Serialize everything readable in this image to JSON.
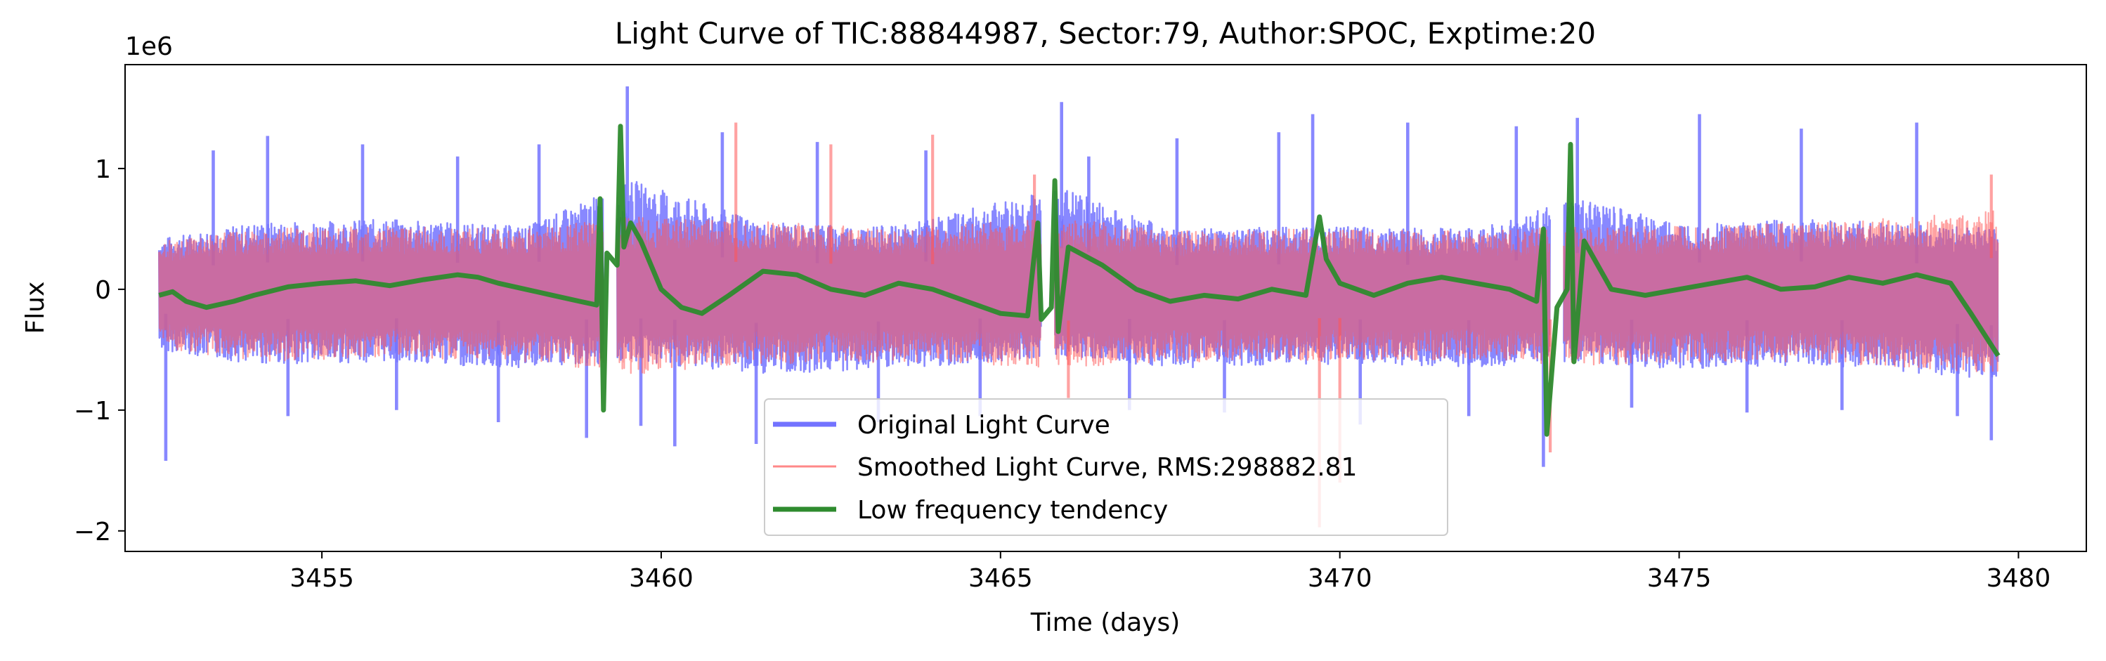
{
  "chart_data": {
    "type": "line",
    "title": "Light Curve of TIC:88844987, Sector:79, Author:SPOC, Exptime:20",
    "xlabel": "Time (days)",
    "ylabel": "Flux",
    "y_offset_label": "1e6",
    "y_scale": 1000000,
    "xlim": [
      3452.1,
      3481.0
    ],
    "ylim": [
      -2.17,
      1.86
    ],
    "x_ticks": [
      3455,
      3460,
      3465,
      3470,
      3475,
      3480
    ],
    "x_tick_labels": [
      "3455",
      "3460",
      "3465",
      "3470",
      "3475",
      "3480"
    ],
    "y_ticks": [
      -2,
      -1,
      0,
      1
    ],
    "y_tick_labels": [
      "−2",
      "−1",
      "0",
      "1"
    ],
    "grid": false,
    "legend_position": "bottom-center",
    "data_segments": [
      [
        3452.6,
        3459.15
      ],
      [
        3459.35,
        3465.6
      ],
      [
        3465.8,
        3473.1
      ],
      [
        3473.3,
        3479.7
      ]
    ],
    "series": [
      {
        "name": "Original Light Curve",
        "color": "#7373ff",
        "band_upper": [
          [
            3452.6,
            0.42
          ],
          [
            3454.0,
            0.55
          ],
          [
            3456.0,
            0.58
          ],
          [
            3458.0,
            0.52
          ],
          [
            3459.6,
            0.9
          ],
          [
            3461.5,
            0.55
          ],
          [
            3463.5,
            0.52
          ],
          [
            3465.9,
            0.85
          ],
          [
            3467.5,
            0.5
          ],
          [
            3469.5,
            0.52
          ],
          [
            3472.0,
            0.5
          ],
          [
            3473.5,
            0.75
          ],
          [
            3475.0,
            0.55
          ],
          [
            3477.0,
            0.58
          ],
          [
            3479.7,
            0.5
          ]
        ],
        "band_lower": [
          [
            3452.6,
            -0.5
          ],
          [
            3454.0,
            -0.62
          ],
          [
            3456.0,
            -0.6
          ],
          [
            3458.0,
            -0.66
          ],
          [
            3459.6,
            -0.6
          ],
          [
            3461.5,
            -0.7
          ],
          [
            3463.5,
            -0.66
          ],
          [
            3465.9,
            -0.55
          ],
          [
            3467.5,
            -0.65
          ],
          [
            3469.5,
            -0.62
          ],
          [
            3472.0,
            -0.64
          ],
          [
            3473.5,
            -0.6
          ],
          [
            3475.0,
            -0.66
          ],
          [
            3477.0,
            -0.62
          ],
          [
            3479.7,
            -0.75
          ]
        ],
        "spikes": [
          [
            3452.7,
            -1.42
          ],
          [
            3453.4,
            1.15
          ],
          [
            3454.2,
            1.27
          ],
          [
            3454.5,
            -1.05
          ],
          [
            3455.6,
            1.2
          ],
          [
            3456.1,
            -1.0
          ],
          [
            3457.0,
            1.1
          ],
          [
            3457.6,
            -1.1
          ],
          [
            3458.2,
            1.2
          ],
          [
            3458.9,
            -1.23
          ],
          [
            3459.5,
            1.68
          ],
          [
            3459.7,
            -1.13
          ],
          [
            3460.2,
            -1.3
          ],
          [
            3460.9,
            1.3
          ],
          [
            3461.4,
            -1.28
          ],
          [
            3462.3,
            1.22
          ],
          [
            3463.2,
            -1.1
          ],
          [
            3463.9,
            1.15
          ],
          [
            3464.7,
            -1.05
          ],
          [
            3465.9,
            1.55
          ],
          [
            3466.3,
            1.1
          ],
          [
            3466.9,
            -1.0
          ],
          [
            3467.6,
            1.25
          ],
          [
            3468.3,
            -1.02
          ],
          [
            3469.1,
            1.3
          ],
          [
            3469.6,
            1.45
          ],
          [
            3470.3,
            -1.12
          ],
          [
            3471.0,
            1.38
          ],
          [
            3471.9,
            -1.05
          ],
          [
            3472.6,
            1.35
          ],
          [
            3473.0,
            -1.47
          ],
          [
            3473.5,
            1.42
          ],
          [
            3474.3,
            -0.98
          ],
          [
            3475.3,
            1.45
          ],
          [
            3476.0,
            -1.02
          ],
          [
            3476.8,
            1.33
          ],
          [
            3477.4,
            -1.0
          ],
          [
            3478.5,
            1.38
          ],
          [
            3479.1,
            -1.05
          ],
          [
            3479.6,
            -1.25
          ]
        ]
      },
      {
        "name": "Smoothed Light Curve, RMS:298882.81",
        "color": "#ff5555",
        "band_upper": [
          [
            3452.6,
            0.4
          ],
          [
            3454.0,
            0.5
          ],
          [
            3456.0,
            0.52
          ],
          [
            3458.0,
            0.5
          ],
          [
            3459.6,
            0.6
          ],
          [
            3461.5,
            0.56
          ],
          [
            3463.5,
            0.5
          ],
          [
            3465.9,
            0.6
          ],
          [
            3467.5,
            0.48
          ],
          [
            3469.5,
            0.5
          ],
          [
            3472.0,
            0.48
          ],
          [
            3473.5,
            0.52
          ],
          [
            3475.0,
            0.52
          ],
          [
            3477.0,
            0.55
          ],
          [
            3479.7,
            0.65
          ]
        ],
        "band_lower": [
          [
            3452.6,
            -0.48
          ],
          [
            3454.0,
            -0.6
          ],
          [
            3456.0,
            -0.56
          ],
          [
            3458.0,
            -0.6
          ],
          [
            3459.6,
            -0.7
          ],
          [
            3461.5,
            -0.62
          ],
          [
            3463.5,
            -0.6
          ],
          [
            3465.9,
            -0.65
          ],
          [
            3467.5,
            -0.6
          ],
          [
            3469.5,
            -0.6
          ],
          [
            3472.0,
            -0.58
          ],
          [
            3473.5,
            -0.64
          ],
          [
            3475.0,
            -0.6
          ],
          [
            3477.0,
            -0.6
          ],
          [
            3479.7,
            -0.7
          ]
        ],
        "spikes": [
          [
            3461.1,
            1.38
          ],
          [
            3462.5,
            1.2
          ],
          [
            3464.0,
            1.28
          ],
          [
            3465.5,
            0.95
          ],
          [
            3469.7,
            -1.97
          ],
          [
            3470.0,
            -1.6
          ],
          [
            3473.1,
            -1.35
          ],
          [
            3479.6,
            0.95
          ],
          [
            3466.0,
            -0.9
          ]
        ]
      },
      {
        "name": "Low frequency tendency",
        "color": "#2e8b2e",
        "points": [
          [
            3452.6,
            -0.05
          ],
          [
            3452.8,
            -0.02
          ],
          [
            3453.0,
            -0.1
          ],
          [
            3453.3,
            -0.15
          ],
          [
            3453.7,
            -0.1
          ],
          [
            3454.0,
            -0.05
          ],
          [
            3454.5,
            0.02
          ],
          [
            3455.0,
            0.05
          ],
          [
            3455.5,
            0.07
          ],
          [
            3456.0,
            0.03
          ],
          [
            3456.5,
            0.08
          ],
          [
            3457.0,
            0.12
          ],
          [
            3457.3,
            0.1
          ],
          [
            3457.6,
            0.05
          ],
          [
            3458.0,
            0.0
          ],
          [
            3458.4,
            -0.05
          ],
          [
            3458.8,
            -0.1
          ],
          [
            3459.05,
            -0.13
          ],
          [
            3459.1,
            0.75
          ],
          [
            3459.15,
            -1.0
          ],
          [
            3459.2,
            0.3
          ],
          [
            3459.35,
            0.2
          ],
          [
            3459.4,
            1.35
          ],
          [
            3459.45,
            0.35
          ],
          [
            3459.55,
            0.55
          ],
          [
            3459.7,
            0.4
          ],
          [
            3460.0,
            0.0
          ],
          [
            3460.3,
            -0.15
          ],
          [
            3460.6,
            -0.2
          ],
          [
            3461.0,
            -0.05
          ],
          [
            3461.5,
            0.15
          ],
          [
            3462.0,
            0.12
          ],
          [
            3462.5,
            0.0
          ],
          [
            3463.0,
            -0.05
          ],
          [
            3463.5,
            0.05
          ],
          [
            3464.0,
            0.0
          ],
          [
            3464.5,
            -0.1
          ],
          [
            3465.0,
            -0.2
          ],
          [
            3465.4,
            -0.22
          ],
          [
            3465.55,
            0.55
          ],
          [
            3465.6,
            -0.25
          ],
          [
            3465.75,
            -0.15
          ],
          [
            3465.8,
            0.9
          ],
          [
            3465.85,
            -0.35
          ],
          [
            3466.0,
            0.35
          ],
          [
            3466.5,
            0.2
          ],
          [
            3467.0,
            0.0
          ],
          [
            3467.5,
            -0.1
          ],
          [
            3468.0,
            -0.05
          ],
          [
            3468.5,
            -0.08
          ],
          [
            3469.0,
            0.0
          ],
          [
            3469.5,
            -0.05
          ],
          [
            3469.7,
            0.6
          ],
          [
            3469.8,
            0.25
          ],
          [
            3470.0,
            0.05
          ],
          [
            3470.5,
            -0.05
          ],
          [
            3471.0,
            0.05
          ],
          [
            3471.5,
            0.1
          ],
          [
            3472.0,
            0.05
          ],
          [
            3472.5,
            0.0
          ],
          [
            3472.9,
            -0.1
          ],
          [
            3473.0,
            0.5
          ],
          [
            3473.05,
            -1.2
          ],
          [
            3473.2,
            -0.15
          ],
          [
            3473.35,
            0.0
          ],
          [
            3473.4,
            1.2
          ],
          [
            3473.45,
            -0.6
          ],
          [
            3473.6,
            0.4
          ],
          [
            3474.0,
            0.0
          ],
          [
            3474.5,
            -0.05
          ],
          [
            3475.0,
            0.0
          ],
          [
            3475.5,
            0.05
          ],
          [
            3476.0,
            0.1
          ],
          [
            3476.5,
            0.0
          ],
          [
            3477.0,
            0.02
          ],
          [
            3477.5,
            0.1
          ],
          [
            3478.0,
            0.05
          ],
          [
            3478.5,
            0.12
          ],
          [
            3479.0,
            0.05
          ],
          [
            3479.3,
            -0.2
          ],
          [
            3479.7,
            -0.55
          ]
        ]
      }
    ]
  }
}
